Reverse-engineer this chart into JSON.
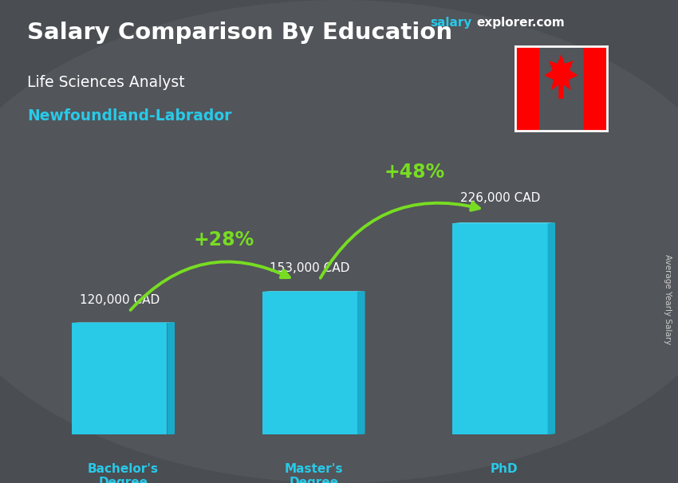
{
  "title_main": "Salary Comparison By Education",
  "subtitle1": "Life Sciences Analyst",
  "subtitle2": "Newfoundland-Labrador",
  "categories": [
    "Bachelor's\nDegree",
    "Master's\nDegree",
    "PhD"
  ],
  "values": [
    120000,
    153000,
    226000
  ],
  "value_labels": [
    "120,000 CAD",
    "153,000 CAD",
    "226,000 CAD"
  ],
  "bar_color_main": "#29C9E8",
  "bar_color_light": "#55DDED",
  "bar_color_dark": "#1AABCA",
  "background_color": "#555860",
  "pct_labels": [
    "+28%",
    "+48%"
  ],
  "pct_color": "#77DD22",
  "side_label": "Average Yearly Salary",
  "website_salary": "salary",
  "website_explorer": "explorer",
  "website_com": ".com",
  "website_color_salary": "#29C9E8",
  "website_color_rest": "#FFFFFF",
  "title_color": "#FFFFFF",
  "subtitle1_color": "#FFFFFF",
  "subtitle2_color": "#29C9E8",
  "value_label_color": "#FFFFFF",
  "xlabel_color": "#29C9E8"
}
